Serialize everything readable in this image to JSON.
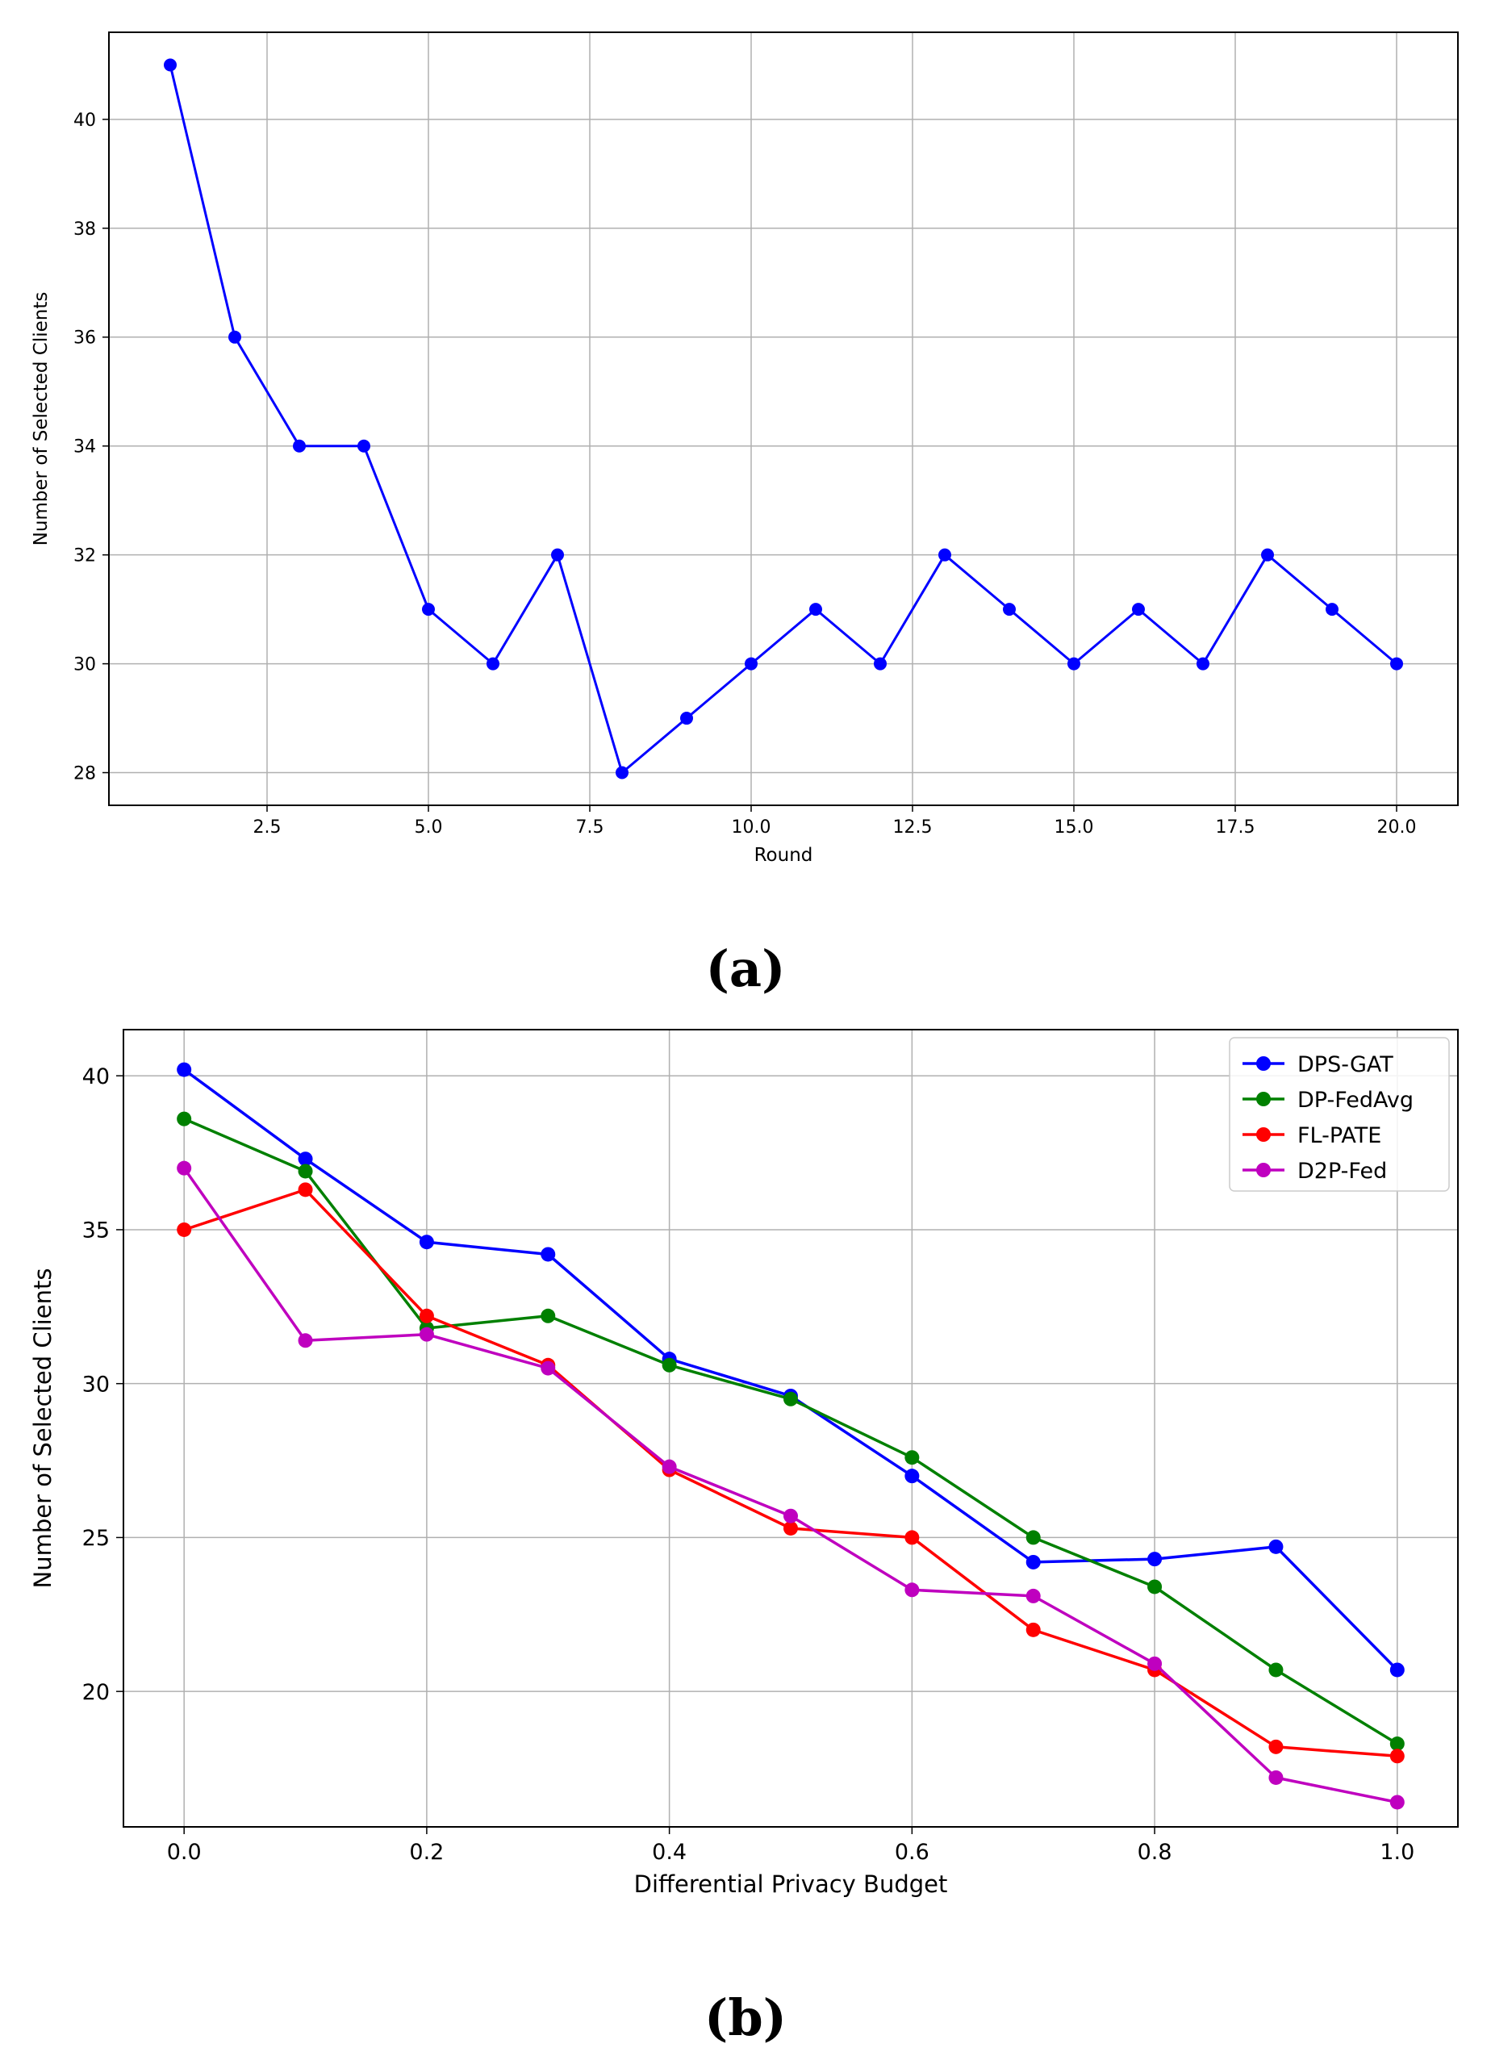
{
  "chart_data": [
    {
      "type": "line",
      "caption": "(a)",
      "title": "",
      "xlabel": "Round",
      "ylabel": "Number of Selected Clients",
      "xlim": [
        0.05,
        20.95
      ],
      "ylim": [
        27.4,
        41.6
      ],
      "xticks": [
        2.5,
        5.0,
        7.5,
        10.0,
        12.5,
        15.0,
        17.5,
        20.0
      ],
      "xtick_labels": [
        "2.5",
        "5.0",
        "7.5",
        "10.0",
        "12.5",
        "15.0",
        "17.5",
        "20.0"
      ],
      "yticks": [
        28,
        30,
        32,
        34,
        36,
        38,
        40
      ],
      "ytick_labels": [
        "28",
        "30",
        "32",
        "34",
        "36",
        "38",
        "40"
      ],
      "grid": true,
      "series": [
        {
          "name": "Selected Clients",
          "color": "#0000ff",
          "x": [
            1,
            2,
            3,
            4,
            5,
            6,
            7,
            8,
            9,
            10,
            11,
            12,
            13,
            14,
            15,
            16,
            17,
            18,
            19,
            20
          ],
          "values": [
            41,
            36,
            34,
            34,
            31,
            30,
            32,
            28,
            29,
            30,
            31,
            30,
            32,
            31,
            30,
            31,
            30,
            32,
            31,
            30
          ]
        }
      ]
    },
    {
      "type": "line",
      "caption": "(b)",
      "title": "",
      "xlabel": "Differential Privacy Budget",
      "ylabel": "Number of Selected Clients",
      "xlim": [
        -0.05,
        1.05
      ],
      "ylim": [
        15.6,
        41.5
      ],
      "xticks": [
        0.0,
        0.2,
        0.4,
        0.6,
        0.8,
        1.0
      ],
      "xtick_labels": [
        "0.0",
        "0.2",
        "0.4",
        "0.6",
        "0.8",
        "1.0"
      ],
      "yticks": [
        20,
        25,
        30,
        35,
        40
      ],
      "ytick_labels": [
        "20",
        "25",
        "30",
        "35",
        "40"
      ],
      "grid": true,
      "legend": "top-right",
      "series": [
        {
          "name": "DPS-GAT",
          "color": "#0000ff",
          "x": [
            0.0,
            0.1,
            0.2,
            0.3,
            0.4,
            0.5,
            0.6,
            0.7,
            0.8,
            0.9,
            1.0
          ],
          "values": [
            40.2,
            37.3,
            34.6,
            34.2,
            30.8,
            29.6,
            27.0,
            24.2,
            24.3,
            24.7,
            20.7
          ]
        },
        {
          "name": "DP-FedAvg",
          "color": "#008000",
          "x": [
            0.0,
            0.1,
            0.2,
            0.3,
            0.4,
            0.5,
            0.6,
            0.7,
            0.8,
            0.9,
            1.0
          ],
          "values": [
            38.6,
            36.9,
            31.8,
            32.2,
            30.6,
            29.5,
            27.6,
            25.0,
            23.4,
            20.7,
            18.3
          ]
        },
        {
          "name": "FL-PATE",
          "color": "#ff0000",
          "x": [
            0.0,
            0.1,
            0.2,
            0.3,
            0.4,
            0.5,
            0.6,
            0.7,
            0.8,
            0.9,
            1.0
          ],
          "values": [
            35.0,
            36.3,
            32.2,
            30.6,
            27.2,
            25.3,
            25.0,
            22.0,
            20.7,
            18.2,
            17.9
          ]
        },
        {
          "name": "D2P-Fed",
          "color": "#bf00bf",
          "x": [
            0.0,
            0.1,
            0.2,
            0.3,
            0.4,
            0.5,
            0.6,
            0.7,
            0.8,
            0.9,
            1.0
          ],
          "values": [
            37.0,
            31.4,
            31.6,
            30.5,
            27.3,
            25.7,
            23.3,
            23.1,
            20.9,
            17.2,
            16.4
          ]
        }
      ]
    }
  ]
}
